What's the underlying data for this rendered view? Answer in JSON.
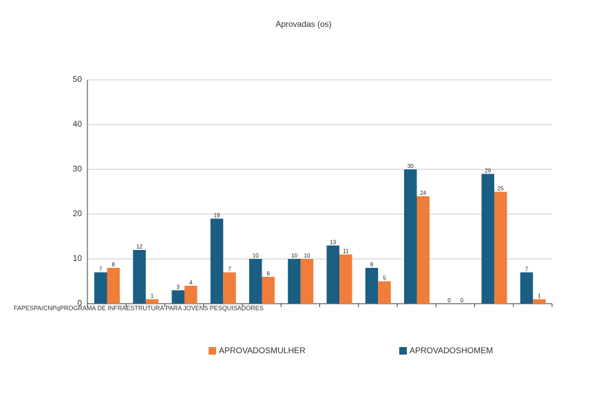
{
  "chart_data": {
    "type": "bar",
    "title": "Aprovadas (os)",
    "categories": [
      "FAPESPA/CNPqPROGRAMA DE INFRAESTRUTURA PARA JOVENS PESQUISADORES",
      null,
      null,
      null,
      null,
      null,
      null,
      null,
      null,
      null,
      null,
      null
    ],
    "series": [
      {
        "name": "APROVADOSHOMEM",
        "color": "#1b5e83",
        "values": [
          7,
          12,
          3,
          19,
          10,
          10,
          13,
          8,
          30,
          0,
          29,
          7
        ]
      },
      {
        "name": "APROVADOSMULHER",
        "color": "#f07e3a",
        "values": [
          8,
          1,
          4,
          7,
          6,
          10,
          11,
          5,
          24,
          0,
          25,
          1
        ]
      }
    ],
    "ylim": [
      0,
      50
    ],
    "yticks": [
      0,
      10,
      20,
      30,
      40,
      50
    ],
    "grid": true,
    "legend": "bottom"
  }
}
